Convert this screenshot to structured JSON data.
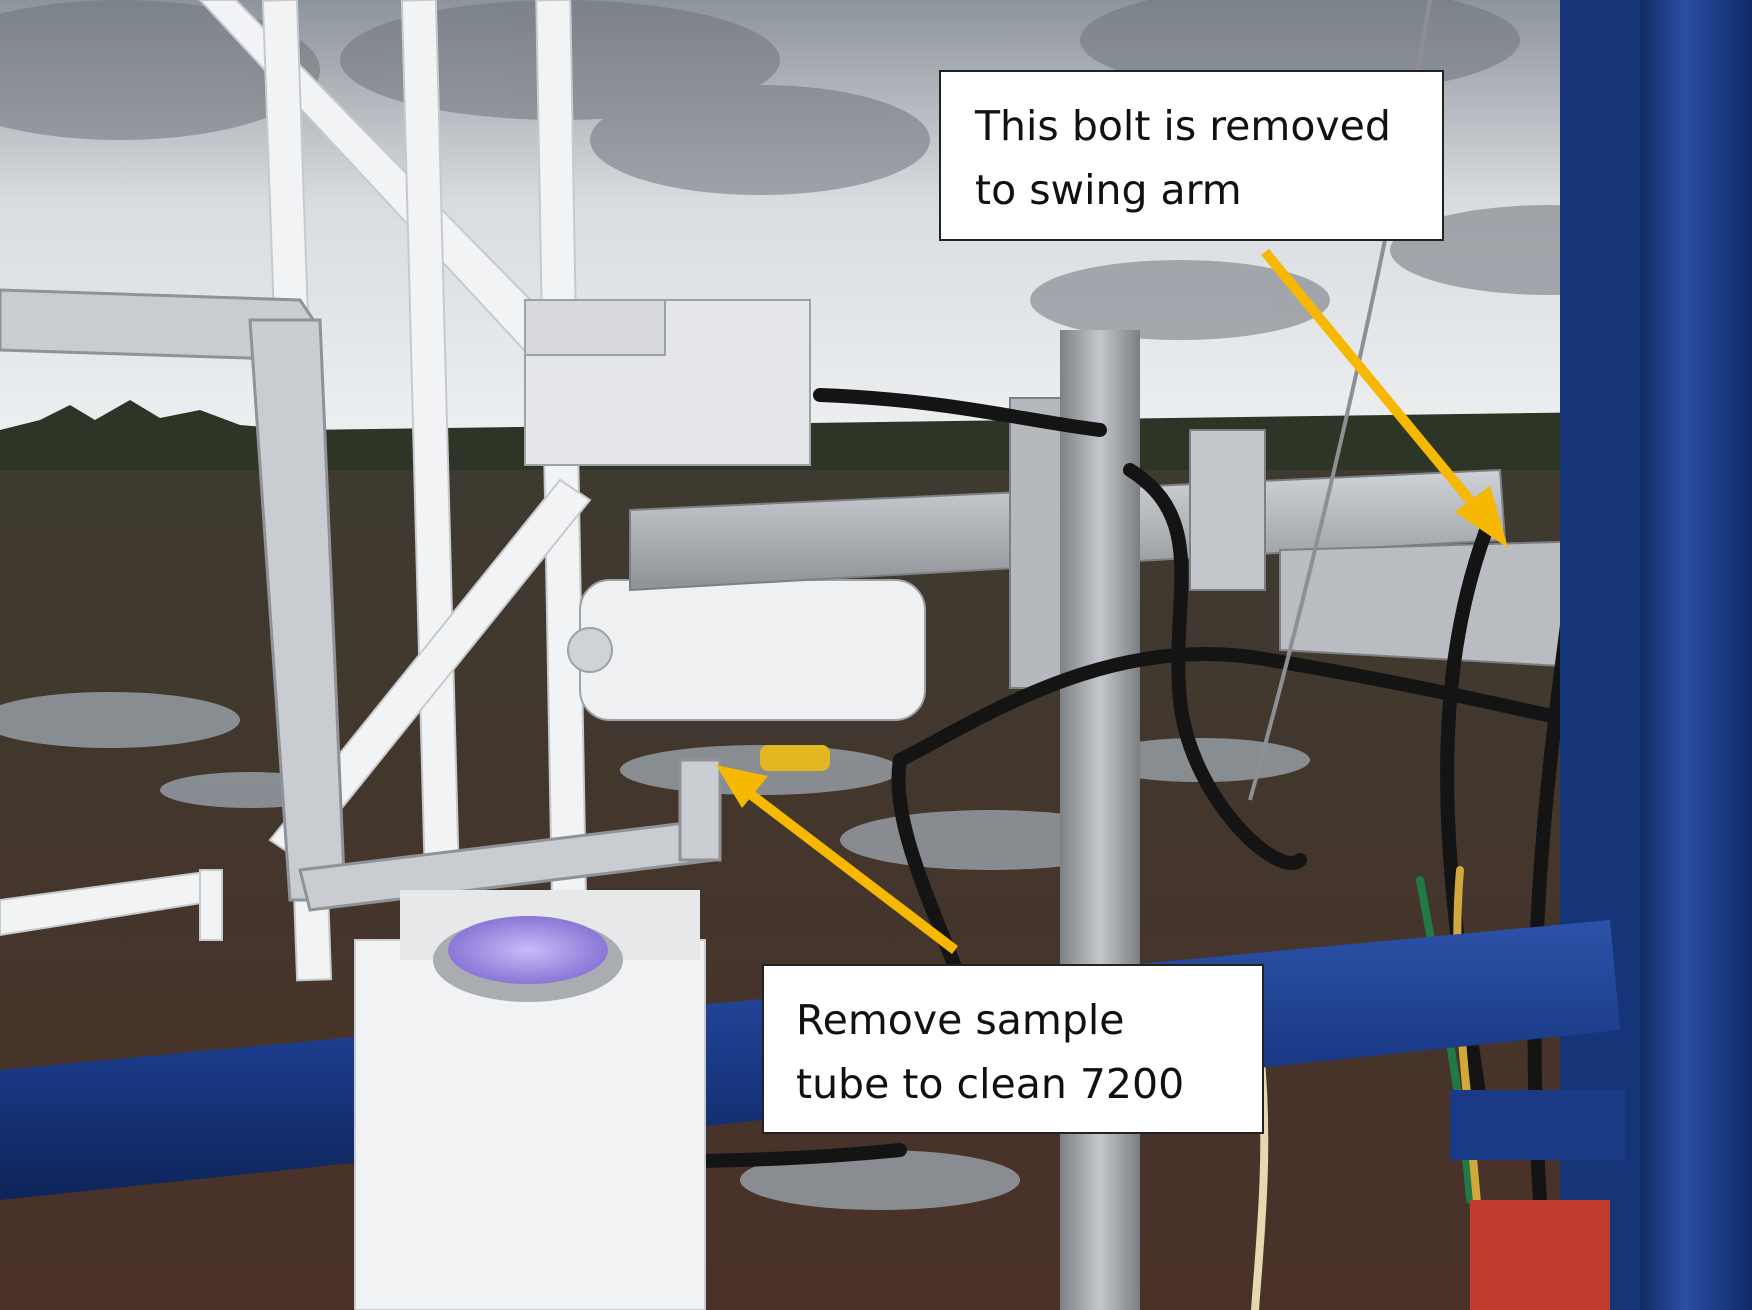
{
  "photo": {
    "colors": {
      "sky_light": "#e7e9ec",
      "sky_mid": "#b9bdc3",
      "cloud_dark": "#6f747b",
      "treeline": "#2d3527",
      "bog": "#5a3b2f",
      "water": "#9aa2ab",
      "white_pipe": "#f2f3f5",
      "foil": "#c9ccd1",
      "aluminum": "#b9bcc0",
      "blue_rail": "#1a3a86",
      "cable": "#141414",
      "arrow": "#f6b800",
      "lens": "#b7a6f0"
    }
  },
  "callouts": {
    "bolt": {
      "line1": "This bolt is removed",
      "line2": "to swing arm"
    },
    "tube": {
      "line1": "Remove sample",
      "line2": "tube to clean 7200"
    }
  }
}
